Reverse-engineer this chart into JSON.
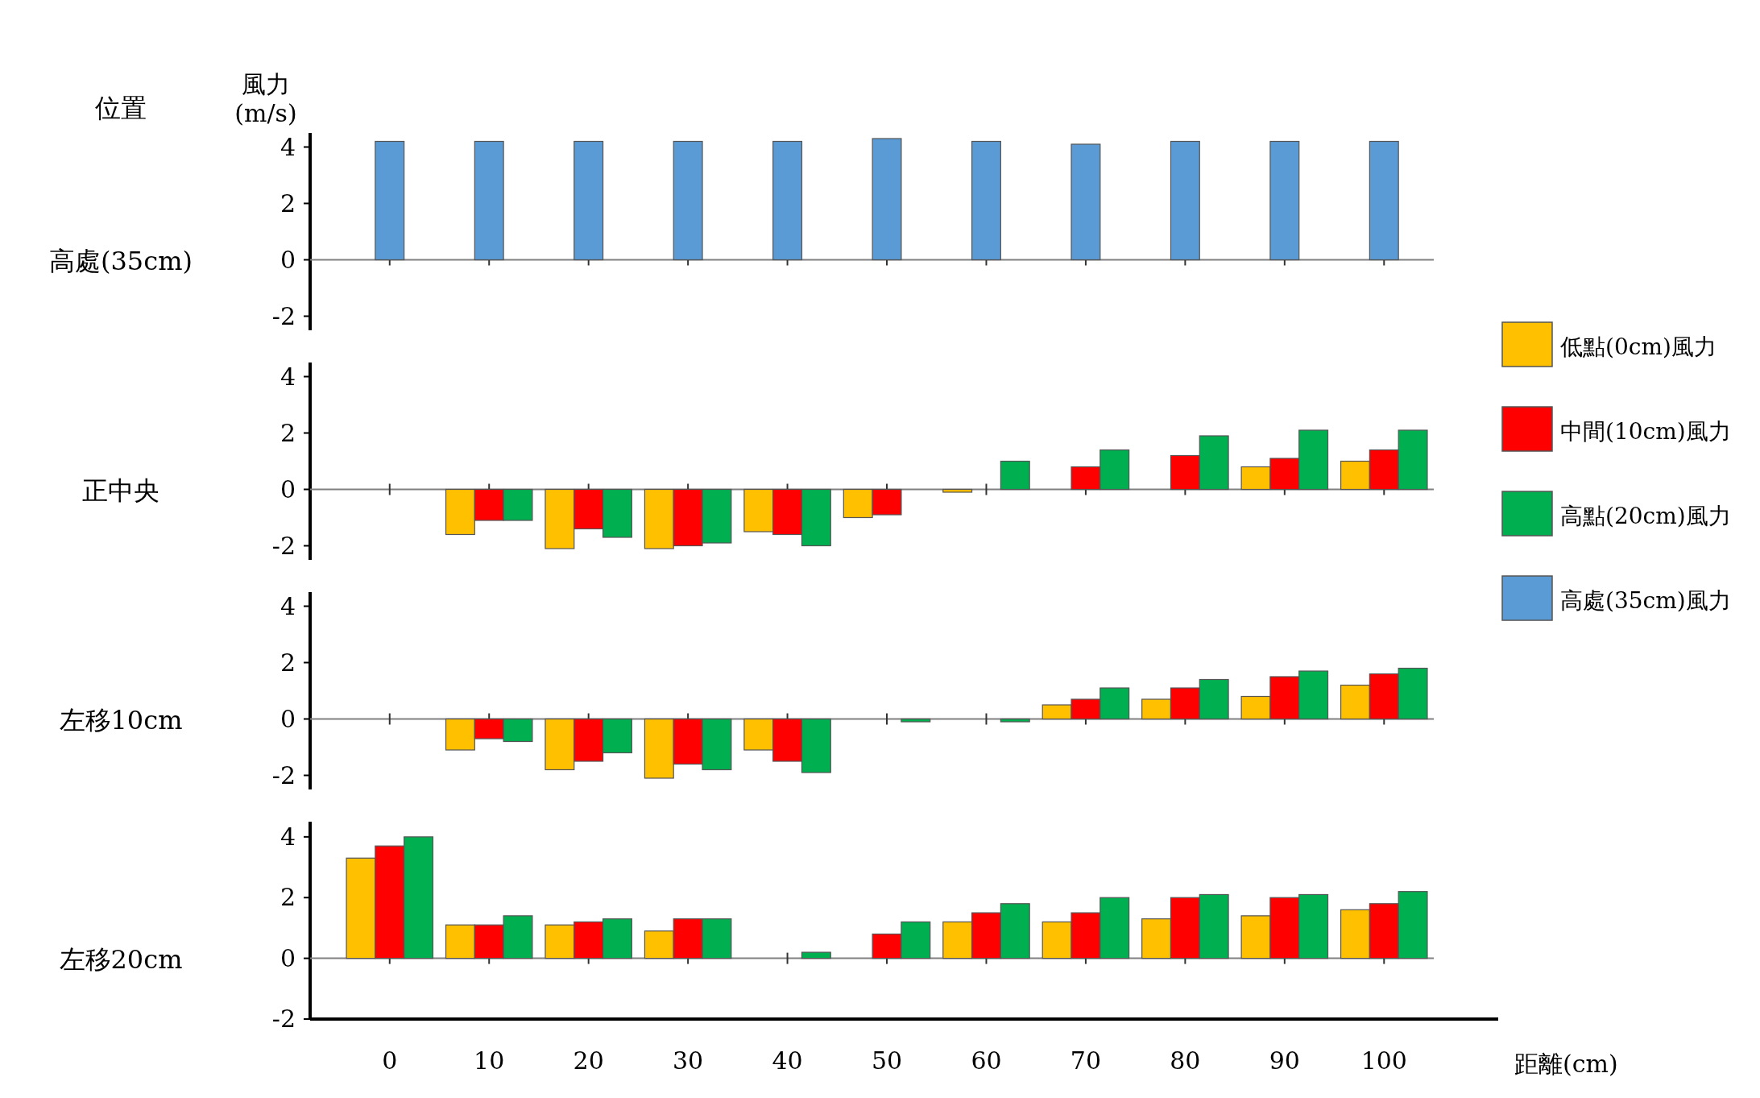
{
  "chart_data": [
    {
      "type": "bar",
      "title": "高處(35cm)",
      "annotations": [
        "位置"
      ],
      "ylabel": "風力(m/s)",
      "categories": [
        "0",
        "10",
        "20",
        "30",
        "40",
        "50",
        "60",
        "70",
        "80",
        "90",
        "100"
      ],
      "ylim": [
        -2.5,
        4.5
      ],
      "yticks": [
        -2,
        0,
        2,
        4
      ],
      "tick_labels": "y",
      "legend": "right",
      "series": [
        {
          "name": "高處(35cm)風力",
          "color": "#5b9bd5",
          "values": [
            4.2,
            4.2,
            4.2,
            4.2,
            4.2,
            4.3,
            4.2,
            4.1,
            4.2,
            4.2,
            4.2
          ]
        }
      ]
    },
    {
      "type": "bar",
      "title": "正中央",
      "categories": [
        "0",
        "10",
        "20",
        "30",
        "40",
        "50",
        "60",
        "70",
        "80",
        "90",
        "100"
      ],
      "ylim": [
        -2.5,
        4.5
      ],
      "yticks": [
        -2,
        0,
        2,
        4
      ],
      "tick_labels": "y",
      "legend": "right",
      "series": [
        {
          "name": "低點(0cm)風力",
          "color": "#ffc000",
          "values": [
            0,
            -1.6,
            -2.1,
            -2.1,
            -1.5,
            -1.0,
            -0.1,
            0,
            0,
            0.8,
            1.0
          ]
        },
        {
          "name": "中間(10cm)風力",
          "color": "#ff0000",
          "values": [
            0,
            -1.1,
            -1.4,
            -2.0,
            -1.6,
            -0.9,
            0,
            0.8,
            1.2,
            1.1,
            1.4
          ]
        },
        {
          "name": "高點(20cm)風力",
          "color": "#00b050",
          "values": [
            0,
            -1.1,
            -1.7,
            -1.9,
            -2.0,
            0,
            1.0,
            1.4,
            1.9,
            2.1,
            2.1
          ]
        }
      ]
    },
    {
      "type": "bar",
      "title": "左移10cm",
      "categories": [
        "0",
        "10",
        "20",
        "30",
        "40",
        "50",
        "60",
        "70",
        "80",
        "90",
        "100"
      ],
      "ylim": [
        -2.5,
        4.5
      ],
      "yticks": [
        -2,
        0,
        2,
        4
      ],
      "tick_labels": "y",
      "legend": "right",
      "series": [
        {
          "name": "低點(0cm)風力",
          "color": "#ffc000",
          "values": [
            0,
            -1.1,
            -1.8,
            -2.1,
            -1.1,
            0,
            0,
            0.5,
            0.7,
            0.8,
            1.2
          ]
        },
        {
          "name": "中間(10cm)風力",
          "color": "#ff0000",
          "values": [
            0,
            -0.7,
            -1.5,
            -1.6,
            -1.5,
            0,
            0,
            0.7,
            1.1,
            1.5,
            1.6
          ]
        },
        {
          "name": "高點(20cm)風力",
          "color": "#00b050",
          "values": [
            0,
            -0.8,
            -1.2,
            -1.8,
            -1.9,
            -0.1,
            -0.1,
            1.1,
            1.4,
            1.7,
            1.8
          ]
        }
      ]
    },
    {
      "type": "bar",
      "title": "左移20cm",
      "xlabel": "距離(cm)",
      "categories": [
        "0",
        "10",
        "20",
        "30",
        "40",
        "50",
        "60",
        "70",
        "80",
        "90",
        "100"
      ],
      "ylim": [
        -2,
        4.5
      ],
      "yticks": [
        -2,
        0,
        2,
        4
      ],
      "legend": "right",
      "series": [
        {
          "name": "低點(0cm)風力",
          "color": "#ffc000",
          "values": [
            3.3,
            1.1,
            1.1,
            0.9,
            0,
            0,
            1.2,
            1.2,
            1.3,
            1.4,
            1.6
          ]
        },
        {
          "name": "中間(10cm)風力",
          "color": "#ff0000",
          "values": [
            3.7,
            1.1,
            1.2,
            1.3,
            0,
            0.8,
            1.5,
            1.5,
            2.0,
            2.0,
            1.8
          ]
        },
        {
          "name": "高點(20cm)風力",
          "color": "#00b050",
          "values": [
            4.0,
            1.4,
            1.3,
            1.3,
            0.2,
            1.2,
            1.8,
            2.0,
            2.1,
            2.1,
            2.2
          ]
        }
      ]
    }
  ]
}
